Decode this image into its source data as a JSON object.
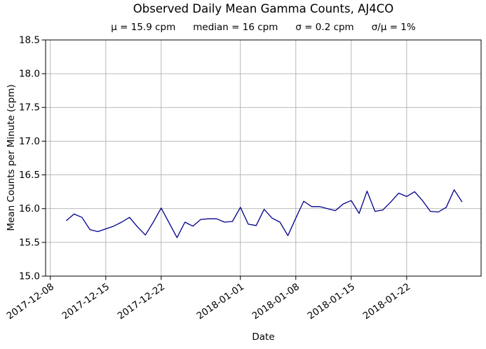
{
  "chart_data": {
    "type": "line",
    "title": "Observed Daily Mean Gamma Counts, AJ4CO",
    "subtitle_stats": [
      "μ = 15.9 cpm",
      "median = 16 cpm",
      "σ = 0.2 cpm",
      "σ/μ = 1%"
    ],
    "xlabel": "Date",
    "ylabel": "Mean Counts per Minute (cpm)",
    "ylim": [
      15.0,
      18.5
    ],
    "yticks": [
      15.0,
      15.5,
      16.0,
      16.5,
      17.0,
      17.5,
      18.0,
      18.5
    ],
    "ytick_labels": [
      "15.0",
      "15.5",
      "16.0",
      "16.5",
      "17.0",
      "17.5",
      "18.0",
      "18.5"
    ],
    "xticks": [
      "2017-12-08",
      "2017-12-15",
      "2017-12-22",
      "2018-01-01",
      "2018-01-08",
      "2018-01-15",
      "2018-01-22"
    ],
    "xlim_days": [
      -0.6,
      54.4
    ],
    "grid": true,
    "legend": "none",
    "line_color": "#00008b",
    "grid_color": "#b0b0b0",
    "x": [
      "2017-12-10",
      "2017-12-11",
      "2017-12-12",
      "2017-12-13",
      "2017-12-14",
      "2017-12-15",
      "2017-12-16",
      "2017-12-17",
      "2017-12-18",
      "2017-12-19",
      "2017-12-20",
      "2017-12-21",
      "2017-12-22",
      "2017-12-23",
      "2017-12-24",
      "2017-12-25",
      "2017-12-26",
      "2017-12-27",
      "2017-12-28",
      "2017-12-29",
      "2017-12-30",
      "2017-12-31",
      "2018-01-01",
      "2018-01-02",
      "2018-01-03",
      "2018-01-04",
      "2018-01-05",
      "2018-01-06",
      "2018-01-07",
      "2018-01-08",
      "2018-01-09",
      "2018-01-10",
      "2018-01-11",
      "2018-01-12",
      "2018-01-13",
      "2018-01-14",
      "2018-01-15",
      "2018-01-16",
      "2018-01-17",
      "2018-01-18",
      "2018-01-19",
      "2018-01-20",
      "2018-01-21",
      "2018-01-22",
      "2018-01-23",
      "2018-01-24",
      "2018-01-25",
      "2018-01-26",
      "2018-01-27",
      "2018-01-28",
      "2018-01-29"
    ],
    "values": [
      15.82,
      15.92,
      15.87,
      15.69,
      15.66,
      15.7,
      15.74,
      15.8,
      15.87,
      15.73,
      15.61,
      15.8,
      16.01,
      15.79,
      15.57,
      15.8,
      15.74,
      15.84,
      15.85,
      15.85,
      15.8,
      15.81,
      16.02,
      15.77,
      15.75,
      15.99,
      15.86,
      15.8,
      15.6,
      15.86,
      16.11,
      16.03,
      16.03,
      16.0,
      15.97,
      16.07,
      16.12,
      15.93,
      16.26,
      15.96,
      15.98,
      16.1,
      16.23,
      16.18,
      16.25,
      16.12,
      15.96,
      15.95,
      16.02,
      16.28,
      16.1
    ]
  }
}
